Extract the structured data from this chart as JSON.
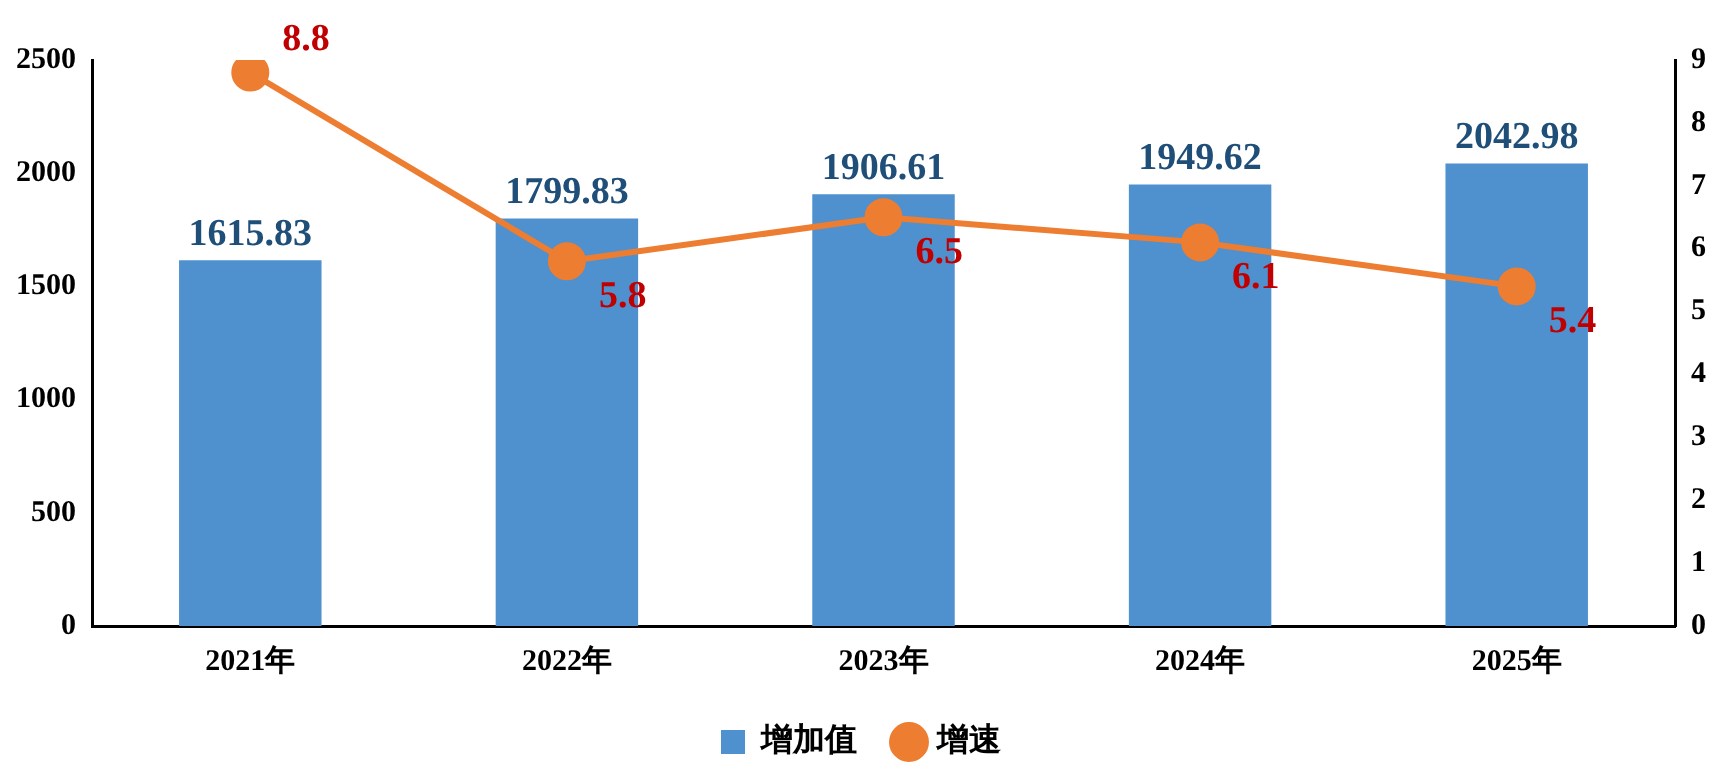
{
  "chart_data": {
    "type": "bar",
    "categories": [
      "2021年",
      "2022年",
      "2023年",
      "2024年",
      "2025年"
    ],
    "series": [
      {
        "name": "增加值",
        "color": "#4f90cf",
        "values": [
          1615.83,
          1799.83,
          1906.61,
          1949.62,
          2042.98
        ]
      },
      {
        "name": "增速",
        "type": "line",
        "axis": "y2",
        "color": "#ed7d31",
        "values": [
          8.8,
          5.8,
          6.5,
          6.1,
          5.4
        ]
      }
    ],
    "ylim": [
      0,
      2500
    ],
    "yticks": [
      0,
      500,
      1000,
      1500,
      2000,
      2500
    ],
    "y2lim": [
      0,
      9
    ],
    "y2ticks": [
      0,
      1,
      2,
      3,
      4,
      5,
      6,
      7,
      8,
      9
    ],
    "grid": false,
    "legend": "bottom",
    "marker": "circle",
    "line_style": "solid",
    "data_labels": true
  }
}
